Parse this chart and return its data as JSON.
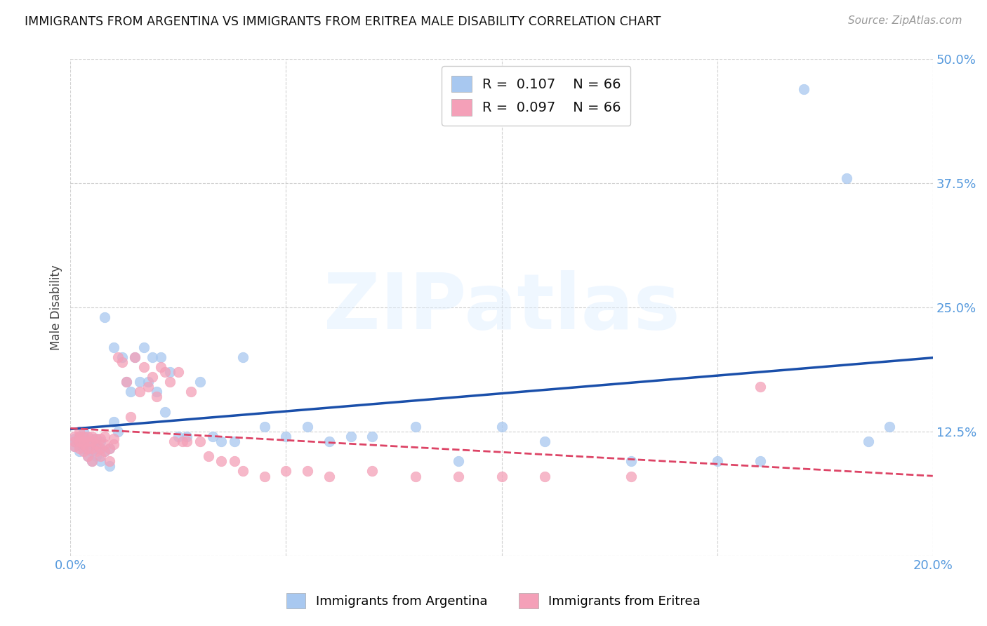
{
  "title": "IMMIGRANTS FROM ARGENTINA VS IMMIGRANTS FROM ERITREA MALE DISABILITY CORRELATION CHART",
  "source": "Source: ZipAtlas.com",
  "ylabel": "Male Disability",
  "xlim": [
    0.0,
    0.2
  ],
  "ylim": [
    0.0,
    0.5
  ],
  "xticks": [
    0.0,
    0.05,
    0.1,
    0.15,
    0.2
  ],
  "yticks": [
    0.0,
    0.125,
    0.25,
    0.375,
    0.5
  ],
  "xtick_labels": [
    "0.0%",
    "",
    "",
    "",
    "20.0%"
  ],
  "ytick_labels": [
    "",
    "12.5%",
    "25.0%",
    "37.5%",
    "50.0%"
  ],
  "argentina_color": "#a8c8f0",
  "eritrea_color": "#f4a0b8",
  "argentina_line_color": "#1a4faa",
  "eritrea_line_color": "#dd4466",
  "argentina_R": 0.107,
  "eritrea_R": 0.097,
  "argentina_N": 66,
  "eritrea_N": 66,
  "legend_label_argentina": "Immigrants from Argentina",
  "legend_label_eritrea": "Immigrants from Eritrea",
  "watermark": "ZIPatlas",
  "background_color": "#ffffff",
  "grid_color": "#cccccc",
  "tick_color": "#5599dd",
  "title_color": "#111111",
  "source_color": "#999999",
  "argentina_x": [
    0.001,
    0.001,
    0.001,
    0.002,
    0.002,
    0.002,
    0.003,
    0.003,
    0.003,
    0.003,
    0.004,
    0.004,
    0.004,
    0.005,
    0.005,
    0.005,
    0.005,
    0.006,
    0.006,
    0.006,
    0.007,
    0.007,
    0.007,
    0.008,
    0.008,
    0.009,
    0.009,
    0.01,
    0.01,
    0.011,
    0.012,
    0.013,
    0.014,
    0.015,
    0.016,
    0.017,
    0.018,
    0.019,
    0.02,
    0.021,
    0.022,
    0.023,
    0.025,
    0.027,
    0.03,
    0.033,
    0.035,
    0.038,
    0.04,
    0.045,
    0.05,
    0.055,
    0.06,
    0.065,
    0.07,
    0.08,
    0.09,
    0.1,
    0.11,
    0.13,
    0.15,
    0.16,
    0.17,
    0.18,
    0.185,
    0.19
  ],
  "argentina_y": [
    0.11,
    0.115,
    0.118,
    0.105,
    0.112,
    0.12,
    0.108,
    0.115,
    0.12,
    0.125,
    0.1,
    0.108,
    0.115,
    0.095,
    0.105,
    0.112,
    0.118,
    0.1,
    0.108,
    0.118,
    0.095,
    0.108,
    0.115,
    0.105,
    0.24,
    0.09,
    0.108,
    0.135,
    0.21,
    0.125,
    0.2,
    0.175,
    0.165,
    0.2,
    0.175,
    0.21,
    0.175,
    0.2,
    0.165,
    0.2,
    0.145,
    0.185,
    0.12,
    0.12,
    0.175,
    0.12,
    0.115,
    0.115,
    0.2,
    0.13,
    0.12,
    0.13,
    0.115,
    0.12,
    0.12,
    0.13,
    0.095,
    0.13,
    0.115,
    0.095,
    0.095,
    0.095,
    0.47,
    0.38,
    0.115,
    0.13
  ],
  "eritrea_x": [
    0.001,
    0.001,
    0.001,
    0.002,
    0.002,
    0.002,
    0.002,
    0.003,
    0.003,
    0.003,
    0.003,
    0.004,
    0.004,
    0.004,
    0.004,
    0.005,
    0.005,
    0.005,
    0.005,
    0.006,
    0.006,
    0.006,
    0.007,
    0.007,
    0.007,
    0.008,
    0.008,
    0.008,
    0.009,
    0.009,
    0.01,
    0.01,
    0.011,
    0.012,
    0.013,
    0.014,
    0.015,
    0.016,
    0.017,
    0.018,
    0.019,
    0.02,
    0.021,
    0.022,
    0.023,
    0.024,
    0.025,
    0.026,
    0.027,
    0.028,
    0.03,
    0.032,
    0.035,
    0.038,
    0.04,
    0.045,
    0.05,
    0.055,
    0.06,
    0.07,
    0.08,
    0.09,
    0.1,
    0.11,
    0.13,
    0.16
  ],
  "eritrea_y": [
    0.11,
    0.115,
    0.12,
    0.108,
    0.115,
    0.12,
    0.125,
    0.105,
    0.112,
    0.115,
    0.12,
    0.1,
    0.108,
    0.115,
    0.12,
    0.095,
    0.108,
    0.115,
    0.12,
    0.105,
    0.112,
    0.118,
    0.1,
    0.108,
    0.118,
    0.105,
    0.112,
    0.12,
    0.095,
    0.108,
    0.112,
    0.118,
    0.2,
    0.195,
    0.175,
    0.14,
    0.2,
    0.165,
    0.19,
    0.17,
    0.18,
    0.16,
    0.19,
    0.185,
    0.175,
    0.115,
    0.185,
    0.115,
    0.115,
    0.165,
    0.115,
    0.1,
    0.095,
    0.095,
    0.085,
    0.08,
    0.085,
    0.085,
    0.08,
    0.085,
    0.08,
    0.08,
    0.08,
    0.08,
    0.08,
    0.17
  ]
}
